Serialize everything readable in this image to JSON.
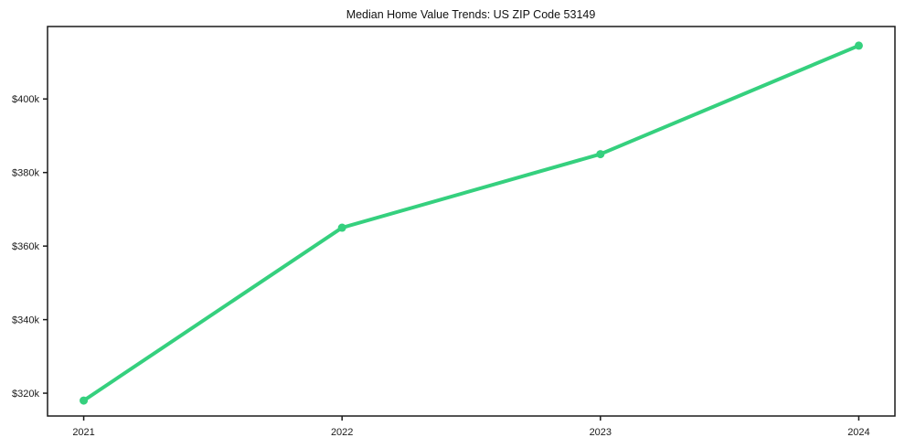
{
  "title": "Median Home Value Trends: US ZIP Code 53149",
  "colors": {
    "line": "#35d07e",
    "marker": "#35d07e",
    "axis": "#1a1a1a",
    "text": "#1a1a1a",
    "background": "#ffffff"
  },
  "chart_data": {
    "type": "line",
    "title": "Median Home Value Trends: US ZIP Code 53149",
    "xlabel": "",
    "ylabel": "",
    "x": [
      2021,
      2022,
      2023,
      2024
    ],
    "x_tick_labels": [
      "2021",
      "2022",
      "2023",
      "2024"
    ],
    "series": [
      {
        "name": "Median Home Value",
        "values": [
          318000,
          365000,
          385000,
          414500
        ]
      }
    ],
    "yticks": [
      320000,
      340000,
      360000,
      380000,
      400000
    ],
    "ytick_labels": [
      "$320k",
      "$340k",
      "$360k",
      "$380k",
      "$400k"
    ],
    "ylim": [
      313800,
      419700
    ],
    "xlim": [
      2020.86,
      2024.14
    ],
    "grid": false,
    "legend": "none",
    "marker": "circle",
    "line_width": 4,
    "marker_radius": 4.5
  }
}
